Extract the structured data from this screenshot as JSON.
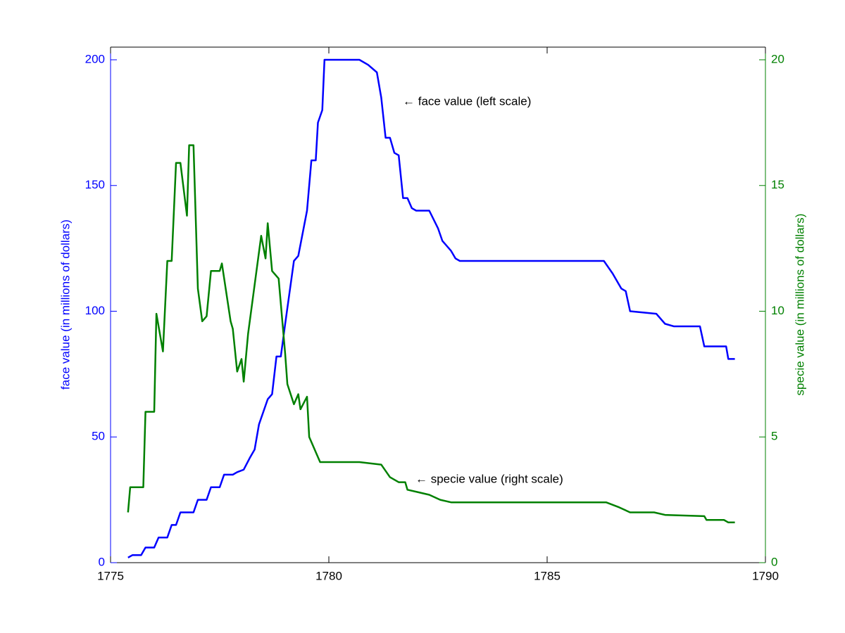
{
  "chart_data": {
    "type": "line",
    "xlim": [
      1775,
      1790
    ],
    "xticks": [
      1775,
      1780,
      1785,
      1790
    ],
    "ylim": [
      0,
      200
    ],
    "yticks": [
      0,
      50,
      100,
      150,
      200
    ],
    "y2lim": [
      0,
      20
    ],
    "y2ticks": [
      0,
      5,
      10,
      15,
      20
    ],
    "ylabel": "face value (in millions of dollars)",
    "y2label": "specie value (in millions of dollars)",
    "grid": false,
    "annotations": [
      "← face value (left scale)",
      "← specie value (right scale)"
    ],
    "series": [
      {
        "name": "face value",
        "color": "#0000ff",
        "axis": "y",
        "x": [
          1775.4,
          1775.5,
          1775.7,
          1775.8,
          1776.0,
          1776.1,
          1776.3,
          1776.4,
          1776.5,
          1776.6,
          1776.9,
          1777.0,
          1777.2,
          1777.3,
          1777.5,
          1777.6,
          1777.8,
          1777.9,
          1778.05,
          1778.2,
          1778.3,
          1778.4,
          1778.6,
          1778.7,
          1778.8,
          1778.9,
          1779.0,
          1779.2,
          1779.3,
          1779.5,
          1779.6,
          1779.7,
          1779.75,
          1779.85,
          1779.9,
          1780.7,
          1780.9,
          1781.1,
          1781.2,
          1781.3,
          1781.4,
          1781.5,
          1781.6,
          1781.7,
          1781.8,
          1781.9,
          1782.0,
          1782.3,
          1782.5,
          1782.6,
          1782.8,
          1782.9,
          1783.0,
          1786.3,
          1786.5,
          1786.7,
          1786.8,
          1786.9,
          1787.5,
          1787.7,
          1787.9,
          1788.5,
          1788.6,
          1789.1,
          1789.15,
          1789.3
        ],
        "values": [
          2,
          3,
          3,
          6,
          6,
          10,
          10,
          15,
          15,
          20,
          20,
          25,
          25,
          30,
          30,
          35,
          35,
          36,
          37,
          42,
          45,
          55,
          65,
          67,
          82,
          82,
          95,
          120,
          122,
          140,
          160,
          160,
          175,
          180,
          200,
          200,
          198,
          195,
          185,
          169,
          169,
          163,
          162,
          145,
          145,
          141,
          140,
          140,
          133,
          128,
          124,
          121,
          120,
          120,
          115,
          109,
          108,
          100,
          99,
          95,
          94,
          94,
          86,
          86,
          81,
          81
        ]
      },
      {
        "name": "specie value",
        "color": "#008000",
        "axis": "y2",
        "x": [
          1775.4,
          1775.45,
          1775.75,
          1775.8,
          1776.0,
          1776.05,
          1776.2,
          1776.3,
          1776.4,
          1776.5,
          1776.6,
          1776.75,
          1776.8,
          1776.9,
          1777.0,
          1777.1,
          1777.2,
          1777.3,
          1777.5,
          1777.55,
          1777.75,
          1777.8,
          1777.9,
          1778.0,
          1778.05,
          1778.15,
          1778.45,
          1778.55,
          1778.6,
          1778.7,
          1778.85,
          1779.0,
          1779.05,
          1779.2,
          1779.3,
          1779.35,
          1779.5,
          1779.55,
          1779.7,
          1779.8,
          1780.7,
          1781.2,
          1781.4,
          1781.6,
          1781.75,
          1781.8,
          1782.05,
          1782.3,
          1782.55,
          1782.8,
          1786.35,
          1786.65,
          1786.9,
          1787.45,
          1787.7,
          1788.6,
          1788.65,
          1789.05,
          1789.15,
          1789.3
        ],
        "values": [
          2.0,
          3.0,
          3.0,
          6.0,
          6.0,
          9.9,
          8.4,
          12.0,
          12.0,
          15.9,
          15.9,
          13.8,
          16.6,
          16.6,
          10.9,
          9.6,
          9.8,
          11.6,
          11.6,
          11.9,
          9.6,
          9.3,
          7.6,
          8.1,
          7.2,
          9.1,
          13.0,
          12.1,
          13.5,
          11.6,
          11.3,
          8.3,
          7.1,
          6.3,
          6.7,
          6.1,
          6.6,
          5.0,
          4.4,
          4.0,
          4.0,
          3.9,
          3.4,
          3.2,
          3.2,
          2.9,
          2.8,
          2.7,
          2.5,
          2.4,
          2.4,
          2.2,
          2.0,
          2.0,
          1.9,
          1.85,
          1.7,
          1.7,
          1.6,
          1.6
        ]
      }
    ]
  }
}
